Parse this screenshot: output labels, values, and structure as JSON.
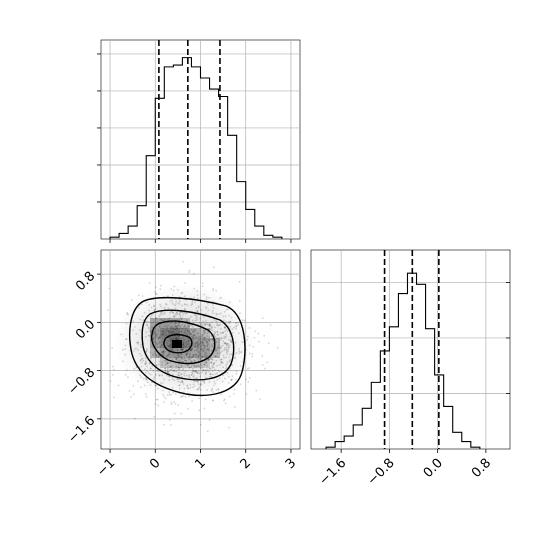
{
  "chart_data": {
    "type": "corner",
    "parameters": [
      "x",
      "y"
    ],
    "panels": [
      {
        "type": "histogram",
        "variable": "x",
        "xlim": [
          -1.2,
          3.2
        ],
        "bins": [
          -1.0,
          -0.8,
          -0.6,
          -0.4,
          -0.2,
          0.0,
          0.2,
          0.4,
          0.6,
          0.8,
          1.0,
          1.2,
          1.4,
          1.6,
          1.8,
          2.0,
          2.2,
          2.4,
          2.6,
          2.8
        ],
        "counts": [
          0.01,
          0.03,
          0.07,
          0.18,
          0.45,
          0.76,
          0.93,
          0.94,
          0.98,
          0.93,
          0.87,
          0.81,
          0.77,
          0.56,
          0.31,
          0.16,
          0.07,
          0.02,
          0.01
        ],
        "quantiles": [
          0.08,
          0.72,
          1.43
        ],
        "grid": true
      },
      {
        "type": "2d-density",
        "x": "x",
        "y": "y",
        "xlim": [
          -1.2,
          3.2
        ],
        "ylim": [
          -2.1,
          1.2
        ],
        "xticks": [
          "−1",
          "0",
          "1",
          "2",
          "3"
        ],
        "yticks": [
          "0.8",
          "0.0",
          "−0.8",
          "−1.6"
        ],
        "peak": [
          0.5,
          -0.4
        ],
        "contour_levels": 4,
        "grid": true
      },
      {
        "type": "histogram",
        "variable": "y",
        "xlim": [
          -2.1,
          1.2
        ],
        "bins": [
          -1.85,
          -1.7,
          -1.55,
          -1.4,
          -1.25,
          -1.1,
          -0.95,
          -0.8,
          -0.65,
          -0.5,
          -0.35,
          -0.2,
          -0.05,
          0.1,
          0.25,
          0.4,
          0.55,
          0.7
        ],
        "counts": [
          0.01,
          0.04,
          0.07,
          0.13,
          0.22,
          0.36,
          0.53,
          0.66,
          0.84,
          0.95,
          0.89,
          0.65,
          0.4,
          0.23,
          0.09,
          0.04,
          0.01
        ],
        "quantiles": [
          -0.88,
          -0.42,
          0.02
        ],
        "xticks": [
          "−1.6",
          "−0.8",
          "0.0",
          "0.8"
        ],
        "grid": true
      }
    ]
  }
}
